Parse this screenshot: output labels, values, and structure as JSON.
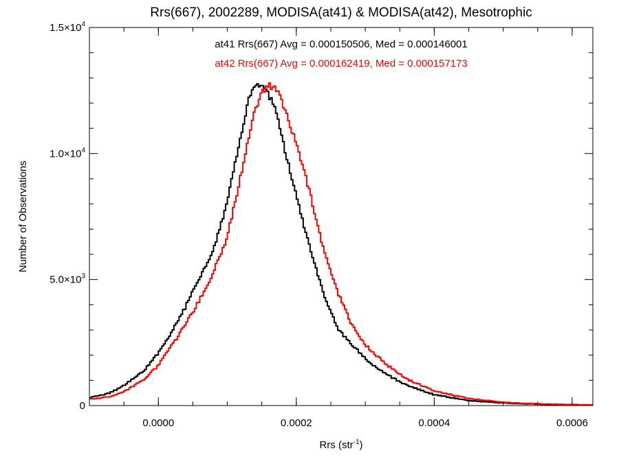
{
  "chart_data": {
    "type": "histogram",
    "title": "Rrs(667), 2002289, MODISA(at41) & MODISA(at42), Mesotrophic",
    "xlabel": "Rrs (str",
    "xlabel_sup": "-1",
    "xlabel_tail": ")",
    "ylabel": "Number of Observations",
    "xlim": [
      -0.0001,
      0.00063
    ],
    "ylim": [
      0,
      15000
    ],
    "x_ticks": [
      {
        "value": 0.0,
        "label": "0.0000"
      },
      {
        "value": 0.0002,
        "label": "0.0002"
      },
      {
        "value": 0.0004,
        "label": "0.0004"
      },
      {
        "value": 0.0006,
        "label": "0.0006"
      }
    ],
    "y_ticks": [
      {
        "value": 0,
        "label": "0",
        "sup": ""
      },
      {
        "value": 5000,
        "label": "5.0×10",
        "sup": "3"
      },
      {
        "value": 10000,
        "label": "1.0×10",
        "sup": "4"
      },
      {
        "value": 15000,
        "label": "1.5×10",
        "sup": "4"
      }
    ],
    "grid": false,
    "annotations": [
      {
        "text": "at41 Rrs(667) Avg = 0.000150506, Med = 0.000146001",
        "color": "#000000"
      },
      {
        "text": "at42 Rrs(667) Avg = 0.000162419, Med = 0.000157173",
        "color": "#ff0000"
      }
    ],
    "series": [
      {
        "name": "at41",
        "color": "#000000",
        "points": [
          [
            -0.0001,
            300
          ],
          [
            -7e-05,
            500
          ],
          [
            -5e-05,
            800
          ],
          [
            -2e-05,
            1400
          ],
          [
            0.0,
            2100
          ],
          [
            2e-05,
            2950
          ],
          [
            4e-05,
            3950
          ],
          [
            6e-05,
            5100
          ],
          [
            8e-05,
            6200
          ],
          [
            0.0001,
            8100
          ],
          [
            0.00012,
            10700
          ],
          [
            0.00013,
            12100
          ],
          [
            0.00014,
            12800
          ],
          [
            0.00015,
            12700
          ],
          [
            0.00016,
            12300
          ],
          [
            0.00017,
            11800
          ],
          [
            0.00018,
            10500
          ],
          [
            0.0002,
            8300
          ],
          [
            0.00022,
            6200
          ],
          [
            0.00024,
            4350
          ],
          [
            0.00026,
            3050
          ],
          [
            0.00028,
            2450
          ],
          [
            0.0003,
            1850
          ],
          [
            0.00033,
            1250
          ],
          [
            0.00036,
            800
          ],
          [
            0.0004,
            430
          ],
          [
            0.00045,
            200
          ],
          [
            0.0005,
            100
          ],
          [
            0.00055,
            55
          ],
          [
            0.00063,
            20
          ]
        ]
      },
      {
        "name": "at42",
        "color": "#ff0000",
        "points": [
          [
            -0.0001,
            250
          ],
          [
            -7e-05,
            350
          ],
          [
            -5e-05,
            550
          ],
          [
            -2e-05,
            1050
          ],
          [
            0.0,
            1600
          ],
          [
            2e-05,
            2400
          ],
          [
            4e-05,
            3250
          ],
          [
            6e-05,
            4200
          ],
          [
            8e-05,
            5300
          ],
          [
            0.0001,
            6700
          ],
          [
            0.00012,
            9200
          ],
          [
            0.00013,
            10500
          ],
          [
            0.00014,
            11700
          ],
          [
            0.00015,
            12400
          ],
          [
            0.00016,
            12700
          ],
          [
            0.00017,
            12600
          ],
          [
            0.00018,
            12000
          ],
          [
            0.0002,
            10400
          ],
          [
            0.00022,
            8400
          ],
          [
            0.00024,
            6100
          ],
          [
            0.00026,
            4500
          ],
          [
            0.00028,
            3200
          ],
          [
            0.0003,
            2400
          ],
          [
            0.00033,
            1650
          ],
          [
            0.00036,
            1050
          ],
          [
            0.0004,
            580
          ],
          [
            0.00045,
            280
          ],
          [
            0.0005,
            130
          ],
          [
            0.00055,
            70
          ],
          [
            0.00063,
            25
          ]
        ]
      }
    ]
  }
}
